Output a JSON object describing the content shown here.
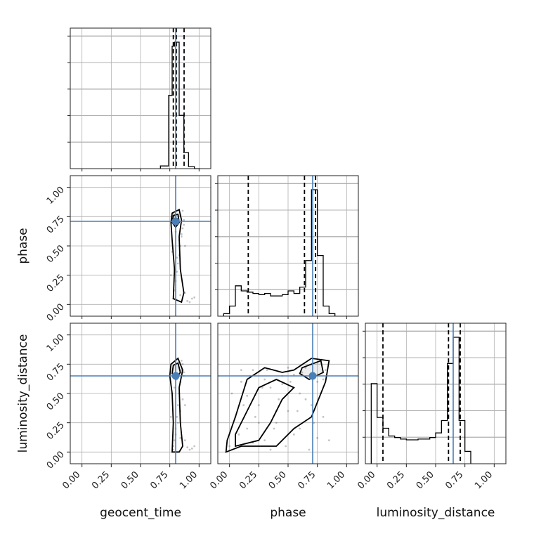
{
  "chart_data": {
    "type": "corner",
    "parameters": [
      "geocent_time",
      "phase",
      "luminosity_distance"
    ],
    "axis_range": [
      -0.1,
      1.1
    ],
    "ticks": [
      0.0,
      0.25,
      0.5,
      0.75,
      1.0
    ],
    "tick_labels": [
      "0.00",
      "0.25",
      "0.50",
      "0.75",
      "1.00"
    ],
    "grid": true,
    "colors": {
      "truth": "#4a7fb5",
      "hist": "#000000",
      "quantile": "#000000",
      "scatter": "#555555",
      "grid": "#b0b0b0"
    },
    "truth": {
      "geocent_time": 0.8,
      "phase": 0.71,
      "luminosity_distance": 0.65
    },
    "histograms": [
      {
        "parameter": "geocent_time",
        "bin_edges": [
          0.67,
          0.74,
          0.77,
          0.79,
          0.83,
          0.87,
          0.91,
          0.96,
          1.01
        ],
        "counts": [
          0.02,
          0.55,
          0.92,
          0.95,
          0.4,
          0.12,
          0.015,
          0.0
        ],
        "quantiles": [
          0.78,
          0.806,
          0.872
        ]
      },
      {
        "parameter": "phase",
        "bin_edges": [
          -0.05,
          0.0,
          0.05,
          0.1,
          0.15,
          0.2,
          0.25,
          0.3,
          0.35,
          0.4,
          0.45,
          0.5,
          0.55,
          0.6,
          0.65,
          0.7,
          0.75,
          0.8,
          0.85,
          0.9
        ],
        "counts": [
          0.02,
          0.08,
          0.24,
          0.2,
          0.19,
          0.18,
          0.17,
          0.18,
          0.16,
          0.16,
          0.17,
          0.2,
          0.18,
          0.23,
          0.44,
          1.0,
          0.48,
          0.08,
          0.02
        ],
        "quantiles": [
          0.16,
          0.64,
          0.735
        ]
      },
      {
        "parameter": "luminosity_distance",
        "bin_edges": [
          -0.05,
          0.0,
          0.05,
          0.1,
          0.15,
          0.2,
          0.25,
          0.3,
          0.35,
          0.4,
          0.45,
          0.5,
          0.55,
          0.6,
          0.65,
          0.7,
          0.75,
          0.8
        ],
        "counts": [
          0.52,
          0.3,
          0.23,
          0.18,
          0.17,
          0.16,
          0.155,
          0.155,
          0.16,
          0.16,
          0.17,
          0.2,
          0.28,
          0.65,
          0.82,
          0.28,
          0.08
        ],
        "quantiles": [
          0.05,
          0.61,
          0.71
        ]
      }
    ],
    "scatter_points": [
      {
        "x_param": "geocent_time",
        "y_param": "phase",
        "x": [
          0.78,
          0.79,
          0.8,
          0.81,
          0.82,
          0.83,
          0.84,
          0.85,
          0.86,
          0.87,
          0.78,
          0.8,
          0.82,
          0.84,
          0.86,
          0.79,
          0.81,
          0.83,
          0.85,
          0.87,
          0.88,
          0.9,
          0.92,
          0.94,
          0.96,
          0.76,
          0.77,
          0.8,
          0.84,
          0.88
        ],
        "y": [
          0.05,
          0.12,
          0.2,
          0.28,
          0.35,
          0.42,
          0.5,
          0.58,
          0.65,
          0.72,
          0.78,
          0.74,
          0.7,
          0.76,
          0.8,
          0.3,
          0.4,
          0.55,
          0.6,
          0.68,
          0.1,
          0.03,
          0.02,
          0.05,
          0.06,
          0.25,
          0.45,
          0.62,
          0.08,
          0.5
        ]
      },
      {
        "x_param": "geocent_time",
        "y_param": "luminosity_distance",
        "x": [
          0.78,
          0.79,
          0.8,
          0.81,
          0.82,
          0.83,
          0.84,
          0.85,
          0.86,
          0.87,
          0.78,
          0.8,
          0.82,
          0.84,
          0.86,
          0.79,
          0.81,
          0.83,
          0.85,
          0.87,
          0.88,
          0.9,
          0.92,
          0.94,
          0.96,
          0.76,
          0.77,
          0.8,
          0.84,
          0.88
        ],
        "y": [
          0.02,
          0.1,
          0.2,
          0.3,
          0.4,
          0.5,
          0.6,
          0.7,
          0.75,
          0.68,
          0.05,
          0.15,
          0.25,
          0.35,
          0.45,
          0.55,
          0.62,
          0.72,
          0.78,
          0.65,
          0.1,
          0.04,
          0.02,
          0.03,
          0.05,
          0.3,
          0.5,
          0.66,
          0.12,
          0.4
        ]
      },
      {
        "x_param": "phase",
        "y_param": "luminosity_distance",
        "x": [
          0.0,
          0.05,
          0.1,
          0.15,
          0.2,
          0.25,
          0.3,
          0.35,
          0.4,
          0.45,
          0.5,
          0.55,
          0.6,
          0.65,
          0.7,
          0.75,
          0.8,
          0.85,
          0.02,
          0.08,
          0.12,
          0.18,
          0.22,
          0.28,
          0.32,
          0.38,
          0.42,
          0.48,
          0.52,
          0.58,
          0.62,
          0.68,
          0.72,
          0.78,
          0.82,
          0.1,
          0.3,
          0.5,
          0.7,
          0.2,
          0.4,
          0.6,
          0.8,
          0.15,
          0.35,
          0.55,
          0.75,
          0.45,
          0.65,
          0.25
        ],
        "y": [
          0.05,
          0.3,
          0.6,
          0.2,
          0.7,
          0.4,
          0.1,
          0.55,
          0.25,
          0.65,
          0.35,
          0.15,
          0.5,
          0.72,
          0.75,
          0.6,
          0.3,
          0.1,
          0.5,
          0.15,
          0.4,
          0.65,
          0.3,
          0.55,
          0.7,
          0.2,
          0.45,
          0.05,
          0.6,
          0.35,
          0.68,
          0.02,
          0.25,
          0.5,
          0.7,
          0.7,
          0.62,
          0.72,
          0.4,
          0.08,
          0.35,
          0.2,
          0.62,
          0.48,
          0.02,
          0.66,
          0.12,
          0.58,
          0.45,
          0.25
        ]
      }
    ]
  }
}
